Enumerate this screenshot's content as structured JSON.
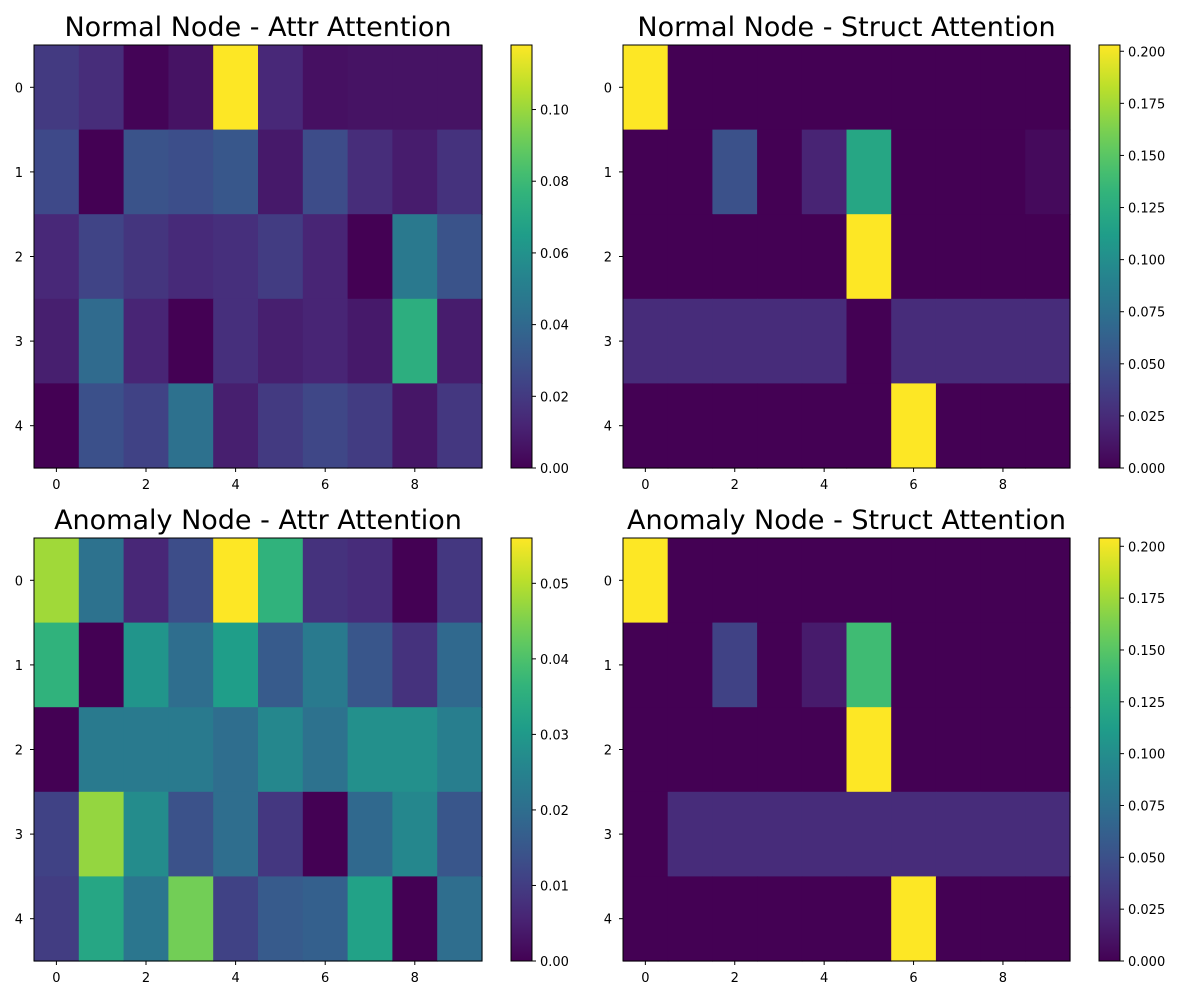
{
  "colormap": "viridis",
  "chart_data": [
    {
      "type": "heatmap",
      "title": "Normal Node - Attr Attention",
      "x_ticks": [
        0,
        2,
        4,
        6,
        8
      ],
      "y_ticks": [
        0,
        1,
        2,
        3,
        4
      ],
      "colorbar": {
        "min": 0.0,
        "max": 0.118,
        "ticks": [
          "0.00",
          "0.02",
          "0.04",
          "0.06",
          "0.08",
          "0.10"
        ]
      },
      "values": [
        [
          0.02,
          0.015,
          0.001,
          0.006,
          0.118,
          0.013,
          0.005,
          0.006,
          0.006,
          0.006
        ],
        [
          0.026,
          0.0,
          0.03,
          0.028,
          0.032,
          0.008,
          0.027,
          0.015,
          0.009,
          0.017
        ],
        [
          0.013,
          0.024,
          0.018,
          0.014,
          0.016,
          0.021,
          0.012,
          0.0,
          0.048,
          0.03
        ],
        [
          0.01,
          0.041,
          0.012,
          0.0,
          0.016,
          0.01,
          0.012,
          0.008,
          0.074,
          0.009
        ],
        [
          0.0,
          0.029,
          0.023,
          0.044,
          0.01,
          0.02,
          0.025,
          0.021,
          0.007,
          0.019
        ]
      ]
    },
    {
      "type": "heatmap",
      "title": "Normal Node - Struct Attention",
      "x_ticks": [
        0,
        2,
        4,
        6,
        8
      ],
      "y_ticks": [
        0,
        1,
        2,
        3,
        4
      ],
      "colorbar": {
        "min": 0.0,
        "max": 0.203,
        "ticks": [
          "0.000",
          "0.025",
          "0.050",
          "0.075",
          "0.100",
          "0.125",
          "0.150",
          "0.175",
          "0.200"
        ]
      },
      "values": [
        [
          0.203,
          0.0,
          0.0,
          0.0,
          0.0,
          0.0,
          0.0,
          0.0,
          0.0,
          0.0
        ],
        [
          0.0,
          0.0,
          0.05,
          0.0,
          0.02,
          0.12,
          0.0,
          0.0,
          0.0,
          0.005
        ],
        [
          0.0,
          0.0,
          0.0,
          0.0,
          0.0,
          0.203,
          0.0,
          0.0,
          0.0,
          0.0
        ],
        [
          0.025,
          0.025,
          0.025,
          0.025,
          0.025,
          0.0,
          0.025,
          0.025,
          0.025,
          0.025
        ],
        [
          0.0,
          0.0,
          0.0,
          0.0,
          0.0,
          0.0,
          0.203,
          0.0,
          0.0,
          0.0
        ]
      ]
    },
    {
      "type": "heatmap",
      "title": "Anomaly Node - Attr Attention",
      "x_ticks": [
        0,
        2,
        4,
        6,
        8
      ],
      "y_ticks": [
        0,
        1,
        2,
        3,
        4
      ],
      "colorbar": {
        "min": 0.0,
        "max": 0.056,
        "ticks": [
          "0.00",
          "0.01",
          "0.02",
          "0.03",
          "0.04",
          "0.05"
        ]
      },
      "values": [
        [
          0.048,
          0.021,
          0.006,
          0.013,
          0.056,
          0.036,
          0.008,
          0.007,
          0.0,
          0.009
        ],
        [
          0.036,
          0.0,
          0.029,
          0.02,
          0.031,
          0.016,
          0.023,
          0.015,
          0.008,
          0.019
        ],
        [
          0.0,
          0.023,
          0.023,
          0.023,
          0.02,
          0.026,
          0.021,
          0.028,
          0.028,
          0.024
        ],
        [
          0.011,
          0.047,
          0.027,
          0.014,
          0.02,
          0.009,
          0.0,
          0.019,
          0.026,
          0.015
        ],
        [
          0.01,
          0.033,
          0.022,
          0.044,
          0.011,
          0.016,
          0.017,
          0.032,
          0.0,
          0.02
        ]
      ]
    },
    {
      "type": "heatmap",
      "title": "Anomaly Node - Struct Attention",
      "x_ticks": [
        0,
        2,
        4,
        6,
        8
      ],
      "y_ticks": [
        0,
        1,
        2,
        3,
        4
      ],
      "colorbar": {
        "min": 0.0,
        "max": 0.204,
        "ticks": [
          "0.000",
          "0.025",
          "0.050",
          "0.075",
          "0.100",
          "0.125",
          "0.150",
          "0.175",
          "0.200"
        ]
      },
      "values": [
        [
          0.204,
          0.0,
          0.0,
          0.0,
          0.0,
          0.0,
          0.0,
          0.0,
          0.0,
          0.0
        ],
        [
          0.0,
          0.0,
          0.04,
          0.0,
          0.015,
          0.14,
          0.0,
          0.0,
          0.0,
          0.0
        ],
        [
          0.0,
          0.0,
          0.0,
          0.0,
          0.0,
          0.204,
          0.0,
          0.0,
          0.0,
          0.0
        ],
        [
          0.0,
          0.025,
          0.025,
          0.025,
          0.025,
          0.025,
          0.025,
          0.025,
          0.025,
          0.025
        ],
        [
          0.0,
          0.0,
          0.0,
          0.0,
          0.0,
          0.0,
          0.204,
          0.0,
          0.0,
          0.0
        ]
      ]
    }
  ]
}
